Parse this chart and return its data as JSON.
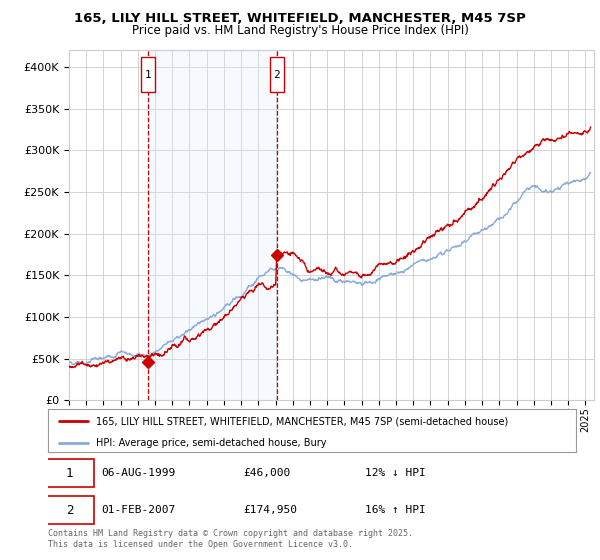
{
  "title1": "165, LILY HILL STREET, WHITEFIELD, MANCHESTER, M45 7SP",
  "title2": "Price paid vs. HM Land Registry's House Price Index (HPI)",
  "legend_line1": "165, LILY HILL STREET, WHITEFIELD, MANCHESTER, M45 7SP (semi-detached house)",
  "legend_line2": "HPI: Average price, semi-detached house, Bury",
  "transaction1": {
    "num": "1",
    "date": "06-AUG-1999",
    "price": "£46,000",
    "hpi": "12% ↓ HPI"
  },
  "transaction2": {
    "num": "2",
    "date": "01-FEB-2007",
    "price": "£174,950",
    "hpi": "16% ↑ HPI"
  },
  "footer": "Contains HM Land Registry data © Crown copyright and database right 2025.\nThis data is licensed under the Open Government Licence v3.0.",
  "line_color_red": "#cc0000",
  "line_color_blue": "#88aadd",
  "vline_color": "#cc0000",
  "shade_color": "#ddeeff",
  "background_color": "#ffffff",
  "grid_color": "#cccccc",
  "ylim": [
    0,
    420000
  ],
  "yticks": [
    0,
    50000,
    100000,
    150000,
    200000,
    250000,
    300000,
    350000,
    400000
  ],
  "xlim_start": 1995.0,
  "xlim_end": 2025.5,
  "vline1_x": 1999.6,
  "vline2_x": 2007.08,
  "marker1_x": 1999.6,
  "marker1_y": 46000,
  "marker2_x": 2007.08,
  "marker2_y": 174950
}
